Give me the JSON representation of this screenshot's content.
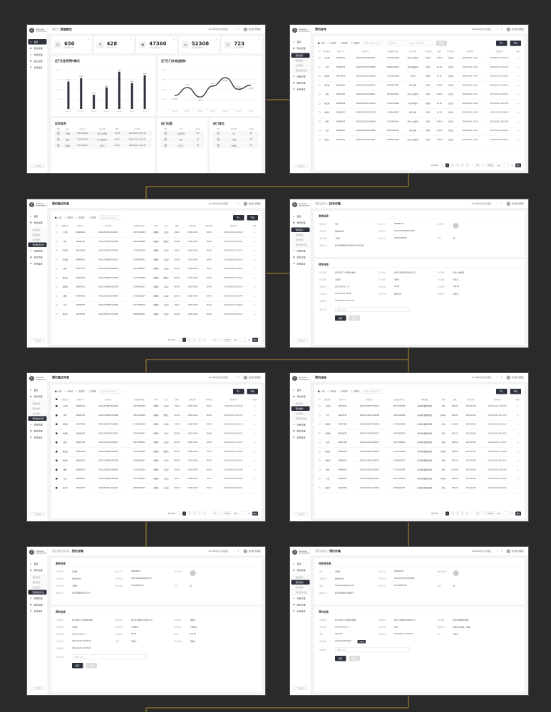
{
  "colors": {
    "background": "#2a2a2a",
    "accent": "#2b303b",
    "connector": "#b8892e",
    "page": "#f3f3f5"
  },
  "common": {
    "menu": [
      {
        "label": "首页",
        "icon": "home-icon"
      },
      {
        "label": "预约管理",
        "icon": "calendar-icon"
      },
      {
        "label": "患者管理",
        "icon": "user-icon"
      },
      {
        "label": "医生管理",
        "icon": "doctor-icon"
      },
      {
        "label": "系统设置",
        "icon": "gear-icon"
      }
    ],
    "submenu": [
      "预约挂号",
      "预约体检",
      "复诊预约",
      "预约随访列表"
    ],
    "logout": "退出登录",
    "date": "2023年9月1日 星期五",
    "user": "欢迎您 管理员",
    "filters": [
      "全部",
      "待就诊",
      "已就诊",
      "已取消"
    ],
    "search_placeholder": "请输入搜索关键词",
    "select_placeholder": "请选择科室",
    "search_btn": "搜索",
    "import_btn": "导入",
    "export_btn": "导出",
    "pager": {
      "total": "共100条",
      "pages": [
        "1",
        "2",
        "3",
        "4",
        "5",
        "...",
        "20"
      ],
      "size": "10条/页",
      "goto": "前往",
      "page_unit": "页",
      "confirm": "确定"
    },
    "save": "保存",
    "cancel": "取消",
    "remark_placeholder": "请输入备注"
  },
  "patients": [
    [
      "王芳明",
      "SN068224",
      "420115198510024497",
      "18073220548"
    ],
    [
      "李华",
      "SN068742",
      "420115199002152088",
      "18652446208"
    ],
    [
      "刘晓燕",
      "SN074835",
      "420115199307152956",
      "17320593038"
    ],
    [
      "李济鑫",
      "SN068420",
      "420115198406125532",
      "15504879423"
    ],
    [
      "赵然",
      "SN067493",
      "420115197603196871",
      "18070598412"
    ],
    [
      "胡弘航",
      "SN063229",
      "420115198807152090",
      "17322159368"
    ],
    [
      "张康涛",
      "SN064521",
      "420115198905224739",
      "15996605207"
    ],
    [
      "唐明",
      "SN064035",
      "420115199102245958",
      "17913083254"
    ],
    [
      "东浩",
      "SN066087",
      "420115198806142996",
      "18073305218"
    ],
    [
      "黄雨宇",
      "SN070303",
      "420115198712212903",
      "18896025935"
    ]
  ],
  "panels": [
    {
      "type": "dashboard",
      "crumb_pre": "首页 / ",
      "crumb": "数据概览",
      "menu": 0,
      "sub": -1,
      "stats": [
        {
          "value": "650",
          "label": "今日预约人数",
          "icon": "clock-icon"
        },
        {
          "value": "428",
          "label": "今日就诊人数",
          "icon": "stethoscope-icon"
        },
        {
          "value": "47360",
          "label": "本月门诊收益(元)",
          "icon": "coin-icon"
        },
        {
          "value": "52308",
          "label": "本月住院收益(元)",
          "icon": "wallet-icon"
        },
        {
          "value": "723",
          "label": "本月新增患者",
          "icon": "person-icon"
        }
      ],
      "realtime": {
        "title": "实时挂号",
        "columns": [
          "头像",
          "姓名",
          "就诊卡号",
          "挂号科室",
          "费用",
          "挂号时间"
        ],
        "rows": [
          [
            "王顺德",
            "18073220548",
            "内科-心血管科",
            "132.00",
            "2023-09-01 15:07:43"
          ],
          [
            "温蕾",
            "13746652367",
            "外科-普通外科",
            "64.00",
            "2023-09-01 15:05:24"
          ],
          [
            "姚俊强",
            "16732209813",
            "妇产科",
            "24.00",
            "2023-09-01 15:01:30"
          ]
        ]
      },
      "hot_dept": {
        "title": "热门科室",
        "columns": [
          "排名",
          "科室",
          "挂号量"
        ],
        "rows": [
          [
            "心血管内科",
            "128"
          ],
          [
            "骨科",
            "96"
          ],
          [
            "妇产科",
            "85"
          ]
        ]
      },
      "hot_doctor": {
        "title": "热门医生",
        "columns": [
          "排名",
          "医生姓名",
          "挂号量"
        ],
        "rows": [
          [
            "王杰",
            "65"
          ],
          [
            "李轻松",
            "58"
          ],
          [
            "张丽丽",
            "43"
          ]
        ]
      }
    },
    {
      "type": "list",
      "crumb_pre": "",
      "crumb": "预约挂号",
      "menu": 1,
      "sub": 0,
      "checked": false,
      "filters": true,
      "columns": [
        "患者姓名",
        "就诊卡号",
        "身份证号",
        "患者联系电话",
        "挂号科室",
        "挂号类型",
        "费用",
        "挂号状态",
        "挂号时间",
        "就诊时间",
        "操作"
      ],
      "extra": [
        [
          "内科-心血管科",
          "专家号",
          "104.00",
          "已就诊",
          "2023-09-01 14:42",
          "2023-09-01 15:07:43"
        ],
        [
          "外科-普通外科",
          "专家号",
          "64.00",
          "已就诊",
          "2023-09-01 14:42",
          "2023-09-01 14:57:03"
        ],
        [
          "妇产科",
          "普通号",
          "24.00",
          "已就诊",
          "2023-09-01 14:40",
          "2023-09-01 15:25:12"
        ],
        [
          "外科-骨科",
          "专家号",
          "132.00",
          "已就诊",
          "2023-09-01 14:40",
          "2023-09-01 15:05:24"
        ],
        [
          "内科-心血管科",
          "专家号",
          "104.00",
          "已就诊",
          "2023-09-01 14:37",
          "2023-09-01 15:05:07"
        ],
        [
          "内科-呼吸科",
          "普通号",
          "24.00",
          "已就诊",
          "2023-09-01 14:36",
          "2023-09-01 15:01:30"
        ],
        [
          "外科-骨科",
          "专家号",
          "64.00",
          "已就诊",
          "2023-09-01 14:36",
          "2023-09-01 14:55:48"
        ],
        [
          "内科-心血管科",
          "专家号",
          "104.00",
          "已就诊",
          "2023-09-01 14:32",
          "2023-09-01 14:53:34"
        ],
        [
          "外科-骨科",
          "专家号",
          "132.00",
          "已就诊",
          "2023-09-01 14:30",
          "2023-09-01 14:50:25"
        ],
        [
          "内科-心血管科",
          "专家号",
          "104.00",
          "已就诊",
          "2023-09-01 14:28",
          "2023-09-01 14:45:22"
        ]
      ]
    },
    {
      "type": "list",
      "crumb_pre": "",
      "crumb": "预约随访列表",
      "menu": 1,
      "sub": 3,
      "checked": false,
      "filters": false,
      "columns": [
        "患者姓名",
        "就诊卡号",
        "身份证号",
        "患者联系电话",
        "科室",
        "医生",
        "费用",
        "预约日期",
        "预约时段",
        "预约时间",
        "操作"
      ],
      "extra": [
        [
          "保健科",
          "王启发",
          "99.00",
          "2023-09-08",
          "09:40",
          "2023-09-01 12:05:40"
        ],
        [
          "保健科",
          "樊悦文",
          "120.00",
          "2023-09-08",
          "09:40",
          "2023-09-01 14:37:03"
        ],
        [
          "保健科",
          "王启发",
          "99.00",
          "2023-09-08",
          "09:40",
          "2023-09-01 13:35:12"
        ],
        [
          "保健科",
          "王启发",
          "220.00",
          "2023-09-08",
          "09:40",
          "2023-09-01 09:05:02"
        ],
        [
          "保健科",
          "王启发",
          "220.00",
          "2023-09-08",
          "09:40",
          "2023-09-01 11:35:07"
        ],
        [
          "保健科",
          "樊悦文",
          "240.00",
          "2023-09-08",
          "09:40",
          "2023-09-01 11:36:45"
        ],
        [
          "保健科",
          "王启发",
          "240.00",
          "2023-09-08",
          "09:40",
          "2023-09-01 09:53:24"
        ],
        [
          "保健科",
          "王启发",
          "220.00",
          "2023-09-08",
          "09:40",
          "2023-09-01 14:55:48"
        ],
        [
          "保健科",
          "王启发",
          "99.00",
          "2023-09-08",
          "09:40",
          "2023-09-01 10:36:20"
        ],
        [
          "保健科",
          "王启发",
          "220.00",
          "2023-09-08",
          "09:40",
          "2023-09-01 09:45:22"
        ]
      ]
    },
    {
      "type": "detail",
      "crumb_pre": "预约挂号 / ",
      "crumb": "挂号详情",
      "menu": 1,
      "sub": 0,
      "badge": "",
      "sections": [
        {
          "title": "患者信息",
          "avatar_label": "患者头像",
          "fields": [
            [
              "患者姓名",
              "李华"
            ],
            [
              "就诊卡号",
              "SN068742"
            ],
            [
              "证件类型",
              "居民身份证"
            ],
            [
              "证件号码",
              "420115199002152088"
            ],
            [
              "患者来源",
              "小程序"
            ],
            [
              "联系电话",
              "18652446208"
            ],
            [
              "性别",
              "男"
            ],
            [
              "家庭住址",
              "北京市朝阳区望京街道XX小区3号楼"
            ]
          ]
        },
        {
          "title": "挂号信息",
          "fields": [
            [
              "挂号医院",
              "北京市第二人民医院(本部)"
            ],
            [
              "挂号地址",
              "北京市东城区新华路123号"
            ],
            [
              "挂号科室",
              "内科-心血管科"
            ],
            [
              "挂号医生",
              "吴佳伟"
            ],
            [
              "挂号类型",
              "专家号"
            ],
            [
              "挂号状态",
              "已就诊"
            ],
            [
              "预约时间",
              "2023-09-01 上午"
            ],
            [
              "就诊时段",
              "09:40"
            ],
            [
              "挂号费用",
              "104.00"
            ],
            [
              "挂号时间",
              "2023-09-01 14:42"
            ],
            [
              "支付方式",
              "微信支付"
            ],
            [
              "支付状态",
              "已支付"
            ],
            [
              "就诊时间",
              "2023-09-01 15:07:43"
            ]
          ],
          "remark_label": "备注信息"
        }
      ]
    },
    {
      "type": "list",
      "crumb_pre": "",
      "crumb": "预约随访列表",
      "menu": 1,
      "sub": 3,
      "checked": true,
      "filters": false,
      "columns": [
        "患者姓名",
        "就诊卡号",
        "身份证号",
        "患者联系电话",
        "科室",
        "医生",
        "费用",
        "预约日期",
        "预约时段",
        "预约时间",
        "操作"
      ],
      "extra": [
        [
          "保健科",
          "王启发",
          "99.00",
          "2023-09-08",
          "09:40",
          "2023-09-01 12:05:40"
        ],
        [
          "保健科",
          "樊悦文",
          "120.00",
          "2023-09-08",
          "09:40",
          "2023-09-01 14:37:03"
        ],
        [
          "保健科",
          "王启发",
          "99.00",
          "2023-09-08",
          "09:40",
          "2023-09-01 13:35:12"
        ],
        [
          "保健科",
          "王启发",
          "220.00",
          "2023-09-08",
          "09:40",
          "2023-09-01 09:05:02"
        ],
        [
          "保健科",
          "王启发",
          "220.00",
          "2023-09-08",
          "09:40",
          "2023-09-01 11:35:07"
        ],
        [
          "保健科",
          "樊悦文",
          "240.00",
          "2023-09-08",
          "09:40",
          "2023-09-01 11:36:45"
        ],
        [
          "保健科",
          "王启发",
          "240.00",
          "2023-09-08",
          "09:40",
          "2023-09-01 09:53:24"
        ],
        [
          "保健科",
          "王启发",
          "220.00",
          "2023-09-08",
          "09:40",
          "2023-09-01 14:55:48"
        ],
        [
          "保健科",
          "王启发",
          "99.00",
          "2023-09-08",
          "09:40",
          "2023-09-01 10:36:20"
        ],
        [
          "保健科",
          "王启发",
          "220.00",
          "2023-09-08",
          "09:40",
          "2023-09-01 09:45:22"
        ]
      ]
    },
    {
      "type": "list",
      "crumb_pre": "",
      "crumb": "预约体检",
      "menu": 1,
      "sub": 1,
      "checked": false,
      "filters": false,
      "columns": [
        "患者姓名",
        "就诊卡号",
        "身份证号",
        "患者联系电话",
        "体检套餐",
        "科室",
        "费用",
        "预约日期",
        "预约时间",
        "操作"
      ],
      "extra": [
        [
          "老年体检套餐A套餐",
          "内科",
          "890.00",
          "2023-09-08",
          "2023-09-01 12:05:40"
        ],
        [
          "老年体检套餐B套餐",
          "体检科",
          "890.00",
          "2023-09-08",
          "2023-09-01 14:37:03"
        ],
        [
          "老年体检套餐A套餐",
          "内科",
          "1200.00",
          "2023-09-08",
          "2023-09-01 13:35:12"
        ],
        [
          "老年体检套餐A套餐",
          "内科",
          "890.00",
          "2023-09-08",
          "2023-09-01 09:05:02"
        ],
        [
          "老年体检套餐A套餐",
          "内科",
          "890.00",
          "2023-09-08",
          "2023-09-01 11:35:07"
        ],
        [
          "老年体检套餐B套餐",
          "体检科",
          "890.00",
          "2023-09-08",
          "2023-09-01 11:36:45"
        ],
        [
          "老年体检套餐A套餐",
          "内科",
          "890.00",
          "2023-09-08",
          "2023-09-01 09:53:24"
        ],
        [
          "老年体检套餐A套餐",
          "内科",
          "1200.00",
          "2023-09-08",
          "2023-09-01 14:55:48"
        ],
        [
          "老年体检套餐A套餐",
          "体检科",
          "890.00",
          "2023-09-08",
          "2023-09-01 10:36:20"
        ],
        [
          "老年体检套餐A套餐",
          "内科",
          "890.00",
          "2023-09-08",
          "2023-09-01 09:45:22"
        ]
      ]
    },
    {
      "type": "detail",
      "crumb_pre": "预约随访列表 / ",
      "crumb": "预约详情",
      "menu": 1,
      "sub": 3,
      "badge": "",
      "sections": [
        {
          "title": "患者信息",
          "avatar_label": "患者头像",
          "fields": [
            [
              "患者姓名",
              "李济鑫"
            ],
            [
              "就诊卡号",
              "SN068420"
            ],
            [
              "证件类型",
              "居民身份证"
            ],
            [
              "证件号码",
              "420115198406125532"
            ],
            [
              "患者来源",
              "小程序"
            ],
            [
              "联系电话",
              "15504879423"
            ],
            [
              "性别",
              "男"
            ],
            [
              "家庭住址",
              "北京市朝阳区望京XX号"
            ]
          ]
        },
        {
          "title": "预约信息",
          "fields": [
            [
              "预约医院",
              "北京市第二人民医院(本部)"
            ],
            [
              "医院地址",
              "北京市东城区新华路123号"
            ],
            [
              "预约科室",
              "保健科"
            ],
            [
              "预约医生",
              "王启发"
            ],
            [
              "医生职称",
              "主任医师"
            ],
            [
              "预约类型",
              "专家随访"
            ],
            [
              "预约日期",
              "2023-09-08 上午"
            ],
            [
              "预约时段",
              "09:40"
            ],
            [
              "费用",
              "220.00"
            ],
            [
              "预约时间",
              "2023-09-01 09:05:02"
            ],
            [
              "支付",
              "已支付"
            ],
            [
              "随访状态",
              "待随访"
            ],
            [
              "创建时间",
              "2023-09-01 09:05:02"
            ]
          ],
          "remark_label": "备注信息"
        }
      ]
    },
    {
      "type": "detail",
      "crumb_pre": "预约体检 / ",
      "crumb": "预约详情",
      "menu": 1,
      "sub": 1,
      "badge": "已体检",
      "sections": [
        {
          "title": "体检者信息",
          "avatar_label": "体检者头像",
          "fields": [
            [
              "姓名",
              "刘晓燕"
            ],
            [
              "就诊卡号",
              "SN074835"
            ],
            [
              "证件类型",
              "居民身份证"
            ],
            [
              "证件号码",
              "420115199307152956"
            ],
            [
              "邮箱",
              "liuxiaoyan@mail.com"
            ],
            [
              "联系电话",
              "17320593038"
            ],
            [
              "性别",
              "女"
            ],
            [
              "家庭住址",
              "北京市朝阳区XX路88号"
            ]
          ]
        },
        {
          "title": "预约信息",
          "fields": [
            [
              "体检医院",
              "北京市第二人民医院(本部)"
            ],
            [
              "医院地址",
              "北京市东城区新华路123号"
            ],
            [
              "体检套餐",
              "老年体检套餐A套餐"
            ],
            [
              "预约日期",
              "2023-09-08 上午"
            ],
            [
              "预约科室",
              "内科"
            ],
            [
              "套餐内容",
              "血常规 尿常规 心电图"
            ],
            [
              "费用",
              "1200.00"
            ],
            [
              "预约时间",
              "2023-09-01 13:35:12"
            ],
            [
              "支付",
              "已支付"
            ],
            [
              "体检状态",
              "2023-09-08 09:40"
            ]
          ],
          "remark_label": "体检报告"
        }
      ]
    }
  ],
  "chart_data": [
    {
      "type": "bar",
      "title": "近7日挂号预约情况",
      "categories": [
        "8月26日",
        "8月27日",
        "8月28日",
        "8月29日",
        "8月30日",
        "8月31日",
        "9月1日"
      ],
      "values": [
        5600,
        6300,
        2900,
        4400,
        7600,
        5300,
        6900
      ],
      "ylim": [
        0,
        8000
      ],
      "yticks": [
        0,
        2000,
        4000,
        6000,
        8000
      ],
      "grid": true,
      "color": "#2b303b"
    },
    {
      "type": "line",
      "title": "近7日门诊收益趋势",
      "categories": [
        "8月26日",
        "8月27日",
        "8月28日",
        "8月29日",
        "8月30日",
        "8月31日",
        "9月1日"
      ],
      "values": [
        20400,
        32700,
        18200,
        35200,
        47800,
        30100,
        36400
      ],
      "ylim": [
        0,
        60000
      ],
      "yticks": [
        0,
        15000,
        30000,
        45000,
        60000
      ],
      "grid": true,
      "smooth": true,
      "color": "#444444"
    }
  ]
}
